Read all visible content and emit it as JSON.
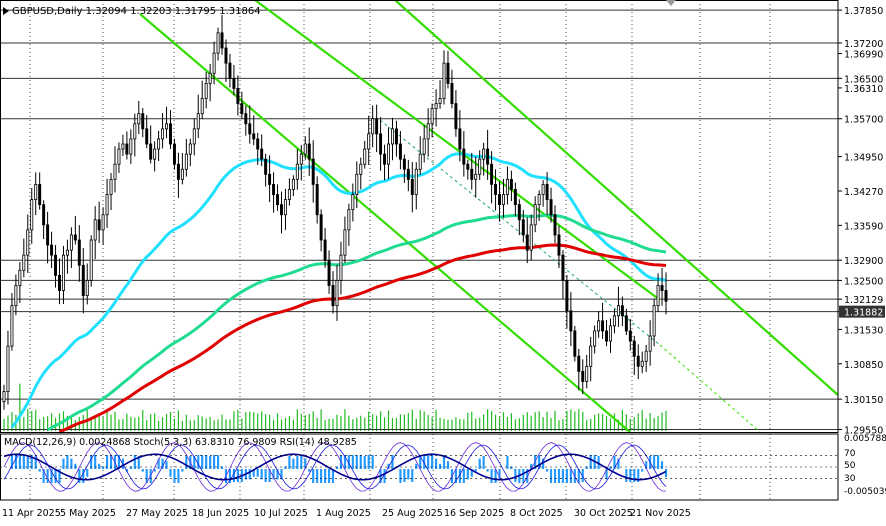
{
  "header": {
    "symbol": "GBPUSD,Daily",
    "ohlc": "1.32094 1.32203 1.31795 1.31864"
  },
  "colors": {
    "background": "#ffffff",
    "grid": "#000000",
    "candle": "#000000",
    "ema_fast": "#20e0ff",
    "ema_mid": "#20dc90",
    "ema_slow": "#e00000",
    "channel": "#33dd00",
    "volume": "#22bb22",
    "macd_hist": "#2299ff",
    "stoch_main": "#6a2ad8",
    "stoch_signal": "#1a1ae0",
    "rsi": "#000090",
    "current_price_box": "#333333"
  },
  "chart_data": [
    {
      "type": "candlestick",
      "title": "GBPUSD,Daily",
      "ylim": [
        1.295,
        1.3805
      ],
      "x_tick_labels": [
        "11 Apr 2025",
        "5 May 2025",
        "27 May 2025",
        "18 Jun 2025",
        "10 Jul 2025",
        "1 Aug 2025",
        "25 Aug 2025",
        "16 Sep 2025",
        "8 Oct 2025",
        "30 Oct 2025",
        "21 Nov 2025"
      ],
      "price_axis_labels": [
        "1.37850",
        "1.37200",
        "1.36990",
        "1.36500",
        "1.36310",
        "1.35700",
        "1.34950",
        "1.34270",
        "1.33590",
        "1.32900",
        "1.32500",
        "1.32129",
        "1.31882",
        "1.31530",
        "1.30850",
        "1.30150",
        "1.29550"
      ],
      "highlighted_levels": [
        "1.37850",
        "1.37200",
        "1.36500",
        "1.35700",
        "1.32900",
        "1.32500",
        "1.32129",
        "1.31882",
        "1.30150",
        "1.29550"
      ],
      "current_price": "1.31882",
      "ohlc_series": [
        1.303,
        1.312,
        1.32,
        1.324,
        1.327,
        1.33,
        1.335,
        1.341,
        1.344,
        1.34,
        1.336,
        1.332,
        1.33,
        1.326,
        1.323,
        1.33,
        1.331,
        1.334,
        1.333,
        1.328,
        1.322,
        1.325,
        1.333,
        1.337,
        1.335,
        1.338,
        1.342,
        1.345,
        1.348,
        1.351,
        1.352,
        1.35,
        1.353,
        1.356,
        1.358,
        1.355,
        1.352,
        1.349,
        1.351,
        1.353,
        1.355,
        1.356,
        1.352,
        1.348,
        1.345,
        1.347,
        1.35,
        1.352,
        1.355,
        1.358,
        1.361,
        1.364,
        1.366,
        1.37,
        1.374,
        1.371,
        1.368,
        1.365,
        1.363,
        1.36,
        1.358,
        1.356,
        1.354,
        1.353,
        1.351,
        1.349,
        1.346,
        1.344,
        1.342,
        1.34,
        1.338,
        1.341,
        1.343,
        1.345,
        1.348,
        1.35,
        1.352,
        1.349,
        1.344,
        1.338,
        1.333,
        1.329,
        1.324,
        1.32,
        1.325,
        1.33,
        1.335,
        1.339,
        1.342,
        1.346,
        1.348,
        1.351,
        1.354,
        1.357,
        1.354,
        1.35,
        1.348,
        1.352,
        1.355,
        1.352,
        1.349,
        1.347,
        1.345,
        1.342,
        1.347,
        1.35,
        1.353,
        1.356,
        1.359,
        1.36,
        1.361,
        1.368,
        1.364,
        1.36,
        1.355,
        1.351,
        1.348,
        1.347,
        1.345,
        1.346,
        1.349,
        1.351,
        1.348,
        1.344,
        1.342,
        1.34,
        1.342,
        1.345,
        1.343,
        1.34,
        1.337,
        1.334,
        1.331,
        1.336,
        1.34,
        1.342,
        1.344,
        1.341,
        1.338,
        1.334,
        1.33,
        1.325,
        1.319,
        1.315,
        1.31,
        1.307,
        1.305,
        1.308,
        1.312,
        1.315,
        1.317,
        1.315,
        1.313,
        1.316,
        1.318,
        1.32,
        1.318,
        1.315,
        1.313,
        1.31,
        1.308,
        1.309,
        1.311,
        1.314,
        1.32,
        1.324,
        1.323,
        1.3209
      ]
    },
    {
      "type": "line",
      "name": "MACD(12,26,9) 0.0024868  Stoch(5,3,3) 63.8310 76.9809  RSI(14) 48.9285",
      "indicator_label": "MACD(12,26,9) 0.0024868  Stoch(5,3,3) 63.8310 76.9809  RSI(14) 48.9285",
      "right_labels": [
        "0.005788",
        "70",
        "50",
        "30",
        "-0.005039"
      ]
    }
  ]
}
